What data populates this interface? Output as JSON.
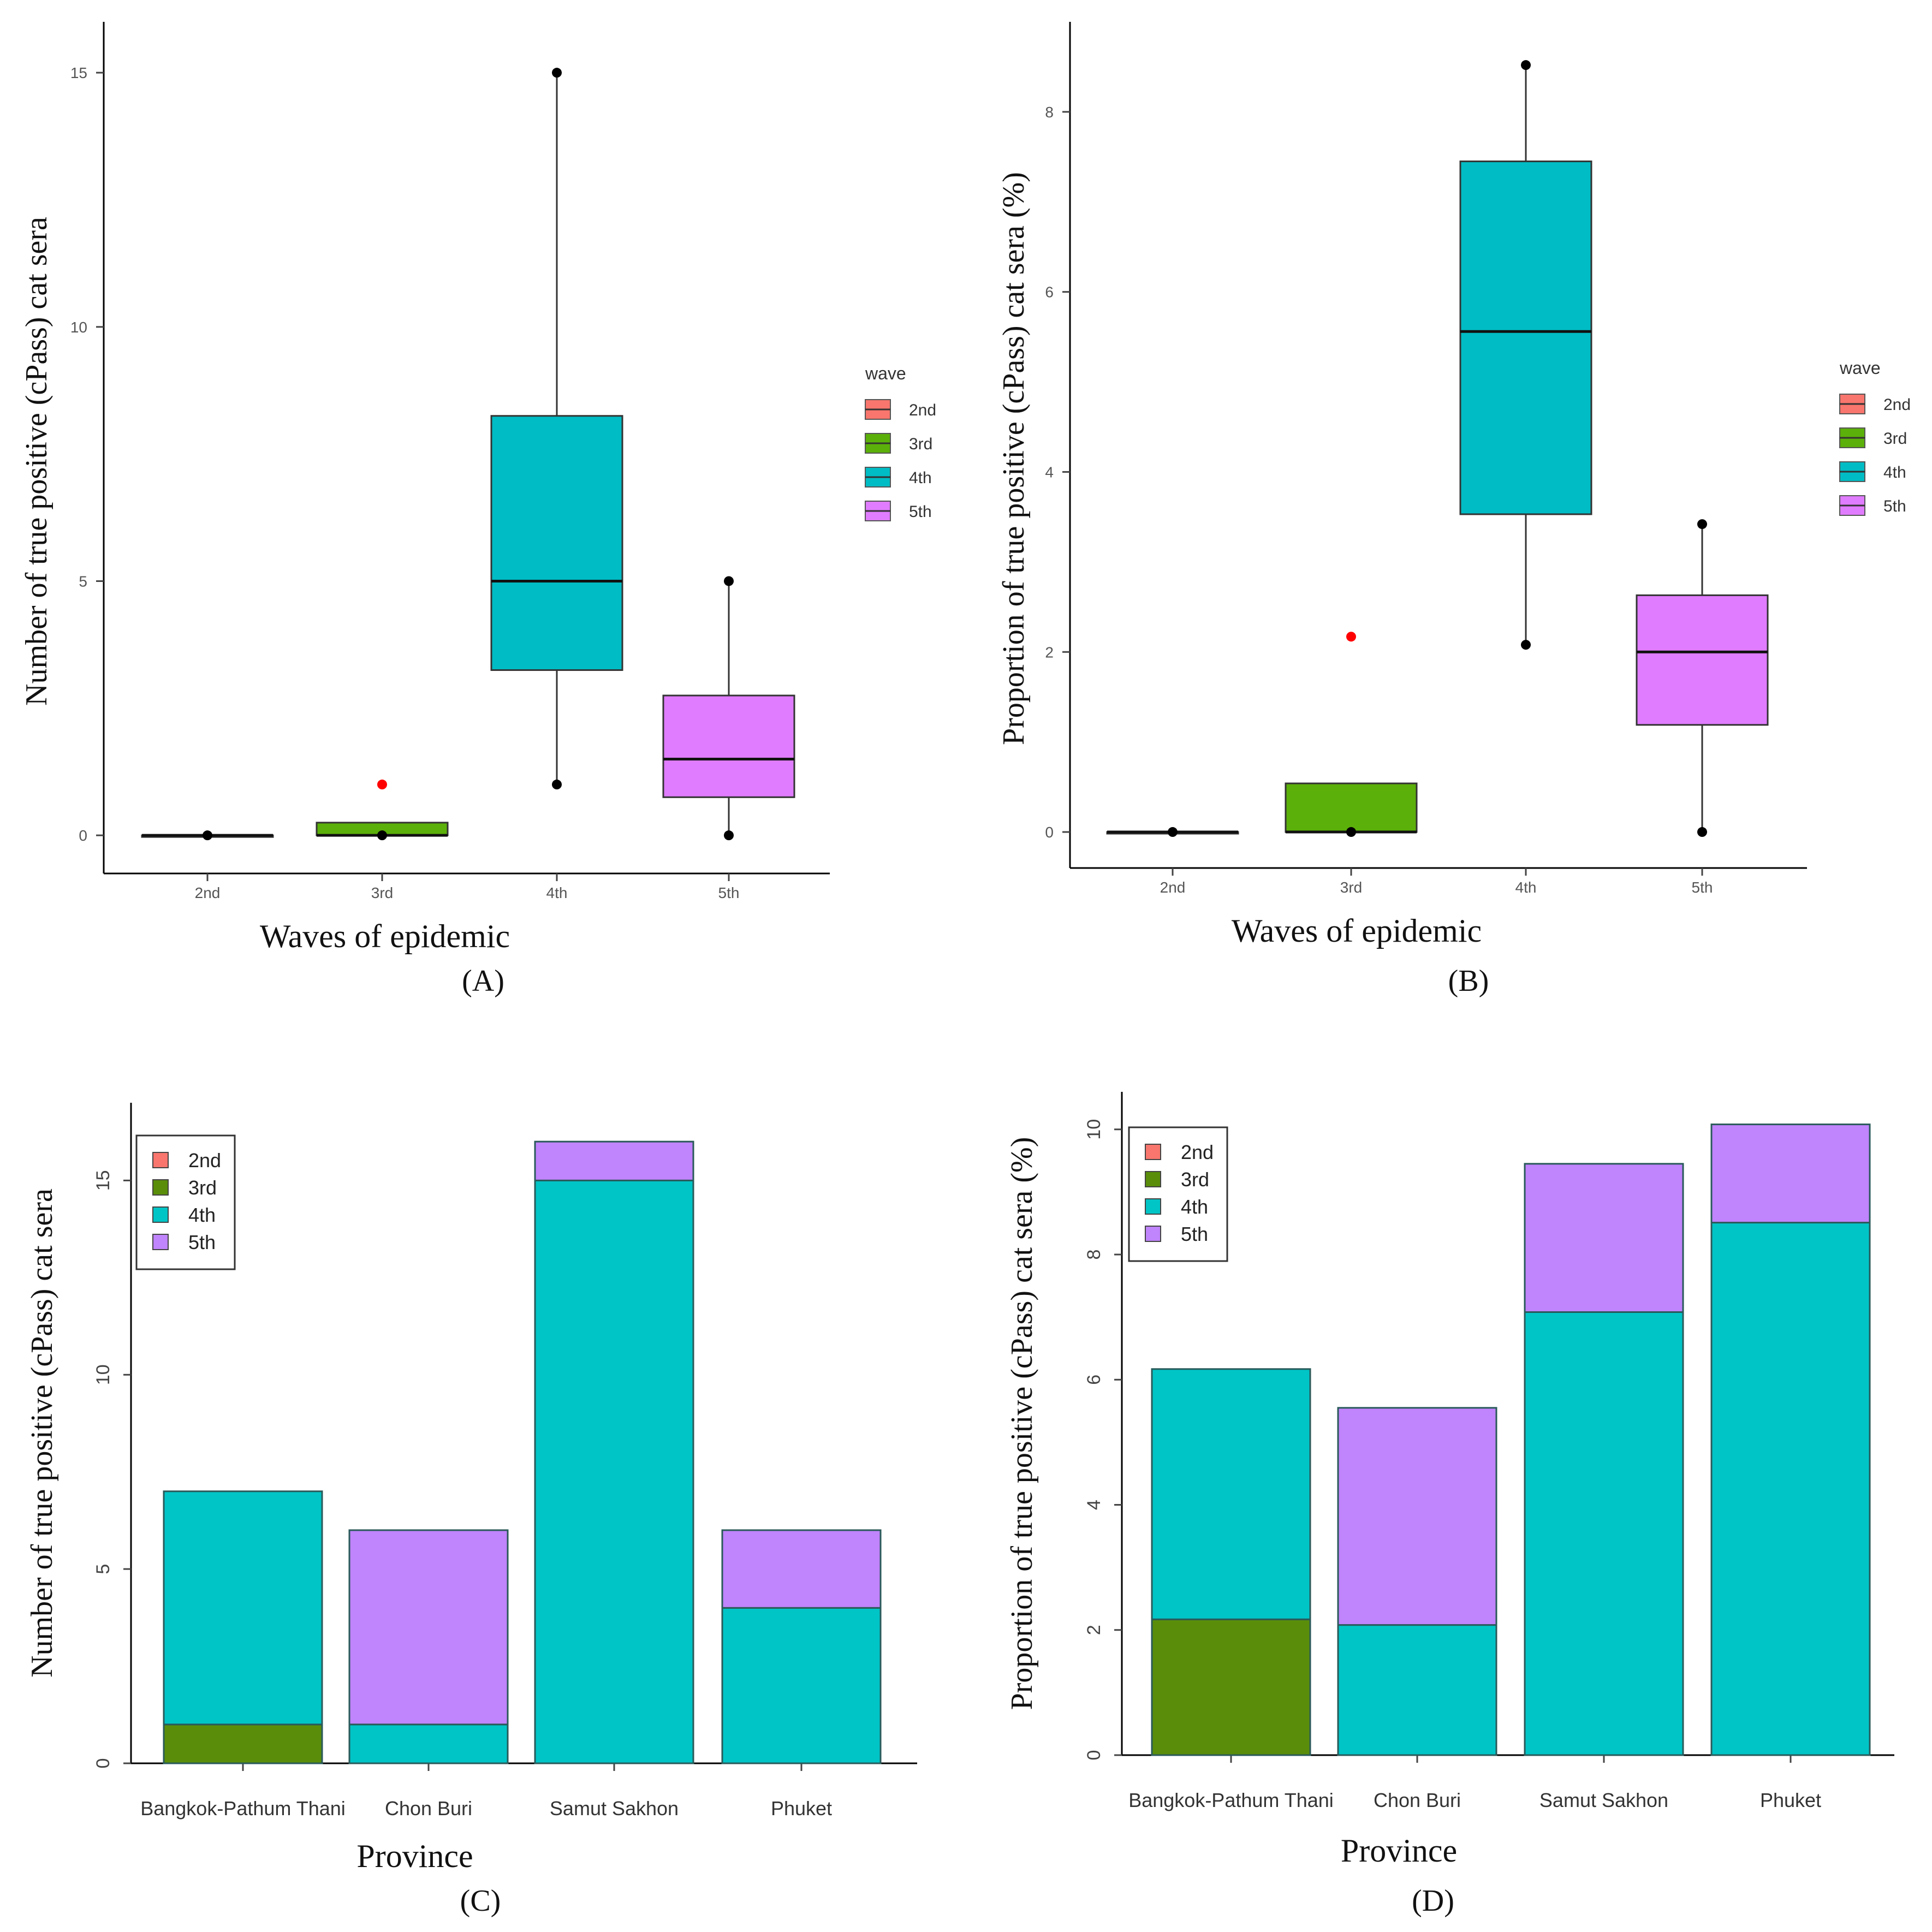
{
  "colors": {
    "2nd": "#F8766D",
    "3rd": "#5A8E0A",
    "4th": "#00C5C7",
    "5th": "#C084FC",
    "box2nd": "#F8766D",
    "box3rd": "#5CB00A",
    "box4th": "#00BCC4",
    "box5th": "#E07CFF",
    "outlier": "#FF0000"
  },
  "panels": [
    {
      "id": "A",
      "label": "(A)",
      "chart_data": {
        "type": "box",
        "xlabel": "Waves of epidemic",
        "ylabel": "Number of  true positive  (cPass) cat sera",
        "categories": [
          "2nd",
          "3rd",
          "4th",
          "5th"
        ],
        "ylim": [
          -0.75,
          16
        ],
        "yticks": [
          "0",
          "5",
          "10",
          "15"
        ],
        "ytick_values": [
          0,
          5,
          10,
          15
        ],
        "grid": false,
        "boxes": [
          {
            "name": "2nd",
            "lower": 0,
            "q1": 0,
            "median": 0,
            "q3": 0,
            "upper": 0,
            "outliers": [],
            "points": [
              0
            ]
          },
          {
            "name": "3rd",
            "lower": 0,
            "q1": 0,
            "median": 0,
            "q3": 0.25,
            "upper": 0,
            "outliers": [
              1
            ],
            "points": [
              0
            ]
          },
          {
            "name": "4th",
            "lower": 1,
            "q1": 3.25,
            "median": 5,
            "q3": 8.25,
            "upper": 15,
            "outliers": [],
            "points": [
              1,
              15
            ]
          },
          {
            "name": "5th",
            "lower": 0,
            "q1": 0.75,
            "median": 1.5,
            "q3": 2.75,
            "upper": 5,
            "outliers": [],
            "points": [
              0,
              5
            ]
          }
        ],
        "legend": {
          "title": "wave",
          "entries": [
            "2nd",
            "3rd",
            "4th",
            "5th"
          ],
          "position": "right"
        }
      }
    },
    {
      "id": "B",
      "label": "(B)",
      "chart_data": {
        "type": "box",
        "xlabel": "Waves of epidemic",
        "ylabel": "Proportion of  true positive (cPass) cat sera (%)",
        "categories": [
          "2nd",
          "3rd",
          "4th",
          "5th"
        ],
        "ylim": [
          -0.4,
          9
        ],
        "yticks": [
          "0",
          "2",
          "4",
          "6",
          "8"
        ],
        "ytick_values": [
          0,
          2,
          4,
          6,
          8
        ],
        "grid": false,
        "boxes": [
          {
            "name": "2nd",
            "lower": 0,
            "q1": 0,
            "median": 0,
            "q3": 0,
            "upper": 0,
            "outliers": [],
            "points": [
              0
            ]
          },
          {
            "name": "3rd",
            "lower": 0,
            "q1": 0,
            "median": 0,
            "q3": 0.54,
            "upper": 0,
            "outliers": [
              2.17
            ],
            "points": [
              0
            ]
          },
          {
            "name": "4th",
            "lower": 2.08,
            "q1": 3.53,
            "median": 5.56,
            "q3": 7.45,
            "upper": 8.52,
            "outliers": [],
            "points": [
              2.08,
              8.52
            ]
          },
          {
            "name": "5th",
            "lower": 0,
            "q1": 1.19,
            "median": 2.0,
            "q3": 2.63,
            "upper": 3.42,
            "outliers": [],
            "points": [
              0,
              3.42
            ]
          }
        ],
        "legend": {
          "title": "wave",
          "entries": [
            "2nd",
            "3rd",
            "4th",
            "5th"
          ],
          "position": "right"
        }
      }
    },
    {
      "id": "C",
      "label": "(C)",
      "chart_data": {
        "type": "bar",
        "stacked": true,
        "xlabel": "Province",
        "ylabel": "Number of  true positive  (cPass) cat sera",
        "categories": [
          "Bangkok-Pathum Thani",
          "Chon Buri",
          "Samut Sakhon",
          "Phuket"
        ],
        "ylim": [
          0,
          17
        ],
        "yticks": [
          "0",
          "5",
          "10",
          "15"
        ],
        "ytick_values": [
          0,
          5,
          10,
          15
        ],
        "grid": false,
        "series": [
          {
            "name": "2nd",
            "values": [
              0,
              0,
              0,
              0
            ]
          },
          {
            "name": "3rd",
            "values": [
              1,
              0,
              0,
              0
            ]
          },
          {
            "name": "4th",
            "values": [
              6,
              1,
              15,
              4
            ]
          },
          {
            "name": "5th",
            "values": [
              0,
              5,
              1,
              2
            ]
          }
        ],
        "legend": {
          "entries": [
            "2nd",
            "3rd",
            "4th",
            "5th"
          ],
          "position": "top-left"
        }
      }
    },
    {
      "id": "D",
      "label": "(D)",
      "chart_data": {
        "type": "bar",
        "stacked": true,
        "xlabel": "Province",
        "ylabel": "Proportion of  true positive (cPass) cat sera (%)",
        "categories": [
          "Bangkok-Pathum Thani",
          "Chon Buri",
          "Samut Sakhon",
          "Phuket"
        ],
        "ylim": [
          0,
          10.6
        ],
        "yticks": [
          "0",
          "2",
          "4",
          "6",
          "8",
          "10"
        ],
        "ytick_values": [
          0,
          2,
          4,
          6,
          8,
          10
        ],
        "grid": false,
        "series": [
          {
            "name": "2nd",
            "values": [
              0,
              0,
              0,
              0
            ]
          },
          {
            "name": "3rd",
            "values": [
              2.17,
              0,
              0,
              0
            ]
          },
          {
            "name": "4th",
            "values": [
              4.0,
              2.08,
              7.08,
              8.51
            ]
          },
          {
            "name": "5th",
            "values": [
              0,
              3.47,
              2.37,
              1.57
            ]
          }
        ],
        "legend": {
          "entries": [
            "2nd",
            "3rd",
            "4th",
            "5th"
          ],
          "position": "top-left"
        }
      }
    }
  ]
}
